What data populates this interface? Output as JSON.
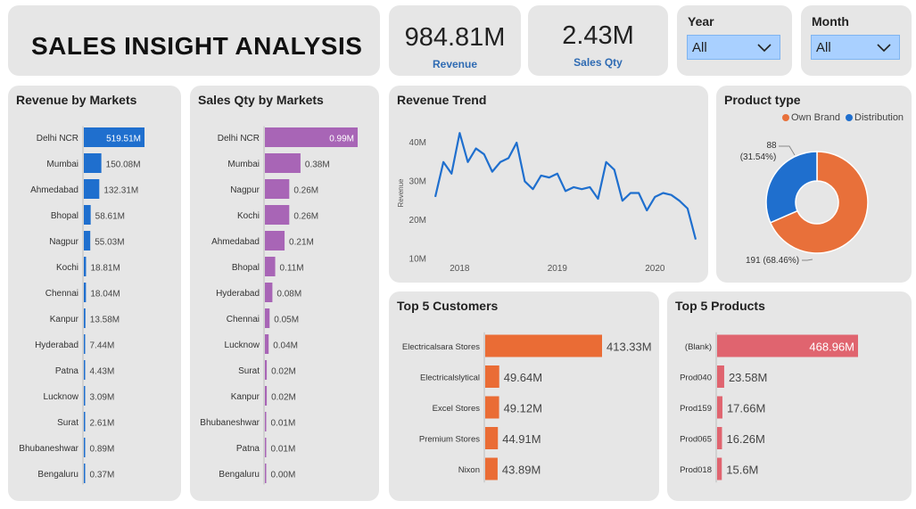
{
  "header": {
    "title": "SALES INSIGHT ANALYSIS"
  },
  "kpis": {
    "revenue": {
      "value": "984.81M",
      "label": "Revenue"
    },
    "sales_qty": {
      "value": "2.43M",
      "label": "Sales Qty"
    }
  },
  "slicers": {
    "year": {
      "title": "Year",
      "value": "All"
    },
    "month": {
      "title": "Month",
      "value": "All"
    }
  },
  "colors": {
    "revenue_bar": "#1f6fce",
    "qty_bar": "#a865b6",
    "own_brand": "#e8703a",
    "distribution": "#1f6fce",
    "customer_bar": "#ea6c35",
    "product_bar": "#e0646f",
    "trend_line": "#1f6fce"
  },
  "revenue_by_markets": {
    "title": "Revenue by Markets",
    "chart_data": {
      "type": "bar",
      "categories": [
        "Delhi NCR",
        "Mumbai",
        "Ahmedabad",
        "Bhopal",
        "Nagpur",
        "Kochi",
        "Chennai",
        "Kanpur",
        "Hyderabad",
        "Patna",
        "Lucknow",
        "Surat",
        "Bhubaneshwar",
        "Bengaluru"
      ],
      "values": [
        519.51,
        150.08,
        132.31,
        58.61,
        55.03,
        18.81,
        18.04,
        13.58,
        7.44,
        4.43,
        3.09,
        2.61,
        0.89,
        0.37
      ],
      "labels": [
        "519.51M",
        "150.08M",
        "132.31M",
        "58.61M",
        "55.03M",
        "18.81M",
        "18.04M",
        "13.58M",
        "7.44M",
        "4.43M",
        "3.09M",
        "2.61M",
        "0.89M",
        "0.37M"
      ]
    }
  },
  "sales_qty_by_markets": {
    "title": "Sales Qty by Markets",
    "chart_data": {
      "type": "bar",
      "categories": [
        "Delhi NCR",
        "Mumbai",
        "Nagpur",
        "Kochi",
        "Ahmedabad",
        "Bhopal",
        "Hyderabad",
        "Chennai",
        "Lucknow",
        "Surat",
        "Kanpur",
        "Bhubaneshwar",
        "Patna",
        "Bengaluru"
      ],
      "values": [
        0.99,
        0.38,
        0.26,
        0.26,
        0.21,
        0.11,
        0.08,
        0.05,
        0.04,
        0.02,
        0.02,
        0.01,
        0.01,
        0.0
      ],
      "labels": [
        "0.99M",
        "0.38M",
        "0.26M",
        "0.26M",
        "0.21M",
        "0.11M",
        "0.08M",
        "0.05M",
        "0.04M",
        "0.02M",
        "0.02M",
        "0.01M",
        "0.01M",
        "0.00M"
      ]
    }
  },
  "revenue_trend": {
    "title": "Revenue Trend",
    "chart_data": {
      "type": "line",
      "ylabel": "Revenue",
      "yticks": [
        "10M",
        "20M",
        "30M",
        "40M"
      ],
      "ytick_values": [
        10,
        20,
        30,
        40
      ],
      "ylim": [
        8,
        46
      ],
      "xticks": [
        "2018",
        "2019",
        "2020"
      ],
      "xtick_positions": [
        3,
        15,
        27
      ],
      "xlim": [
        0,
        32
      ],
      "values": [
        26,
        35,
        32,
        42.5,
        35,
        38.5,
        37,
        32.5,
        35,
        36,
        40,
        30,
        28,
        31.5,
        31,
        32,
        27.5,
        28.5,
        28,
        28.5,
        25.5,
        35,
        33,
        25,
        27,
        27,
        22.5,
        26,
        27,
        26.5,
        25,
        23,
        15
      ]
    }
  },
  "product_type": {
    "title": "Product type",
    "chart_data": {
      "type": "pie",
      "legend": [
        "Own Brand",
        "Distribution"
      ],
      "values": [
        191,
        88
      ],
      "labels": [
        "191 (68.46%)",
        "88 (31.54%)"
      ],
      "label_dist_a": "88",
      "label_dist_b": "(31.54%)"
    }
  },
  "top_customers": {
    "title": "Top 5 Customers",
    "chart_data": {
      "type": "bar",
      "categories": [
        "Electricalsara Stores",
        "Electricalslytical",
        "Excel Stores",
        "Premium Stores",
        "Nixon"
      ],
      "values": [
        413.33,
        49.64,
        49.12,
        44.91,
        43.89
      ],
      "labels": [
        "413.33M",
        "49.64M",
        "49.12M",
        "44.91M",
        "43.89M"
      ]
    }
  },
  "top_products": {
    "title": "Top 5 Products",
    "chart_data": {
      "type": "bar",
      "categories": [
        "(Blank)",
        "Prod040",
        "Prod159",
        "Prod065",
        "Prod018"
      ],
      "values": [
        468.96,
        23.58,
        17.66,
        16.26,
        15.6
      ],
      "labels": [
        "468.96M",
        "23.58M",
        "17.66M",
        "16.26M",
        "15.6M"
      ]
    }
  }
}
